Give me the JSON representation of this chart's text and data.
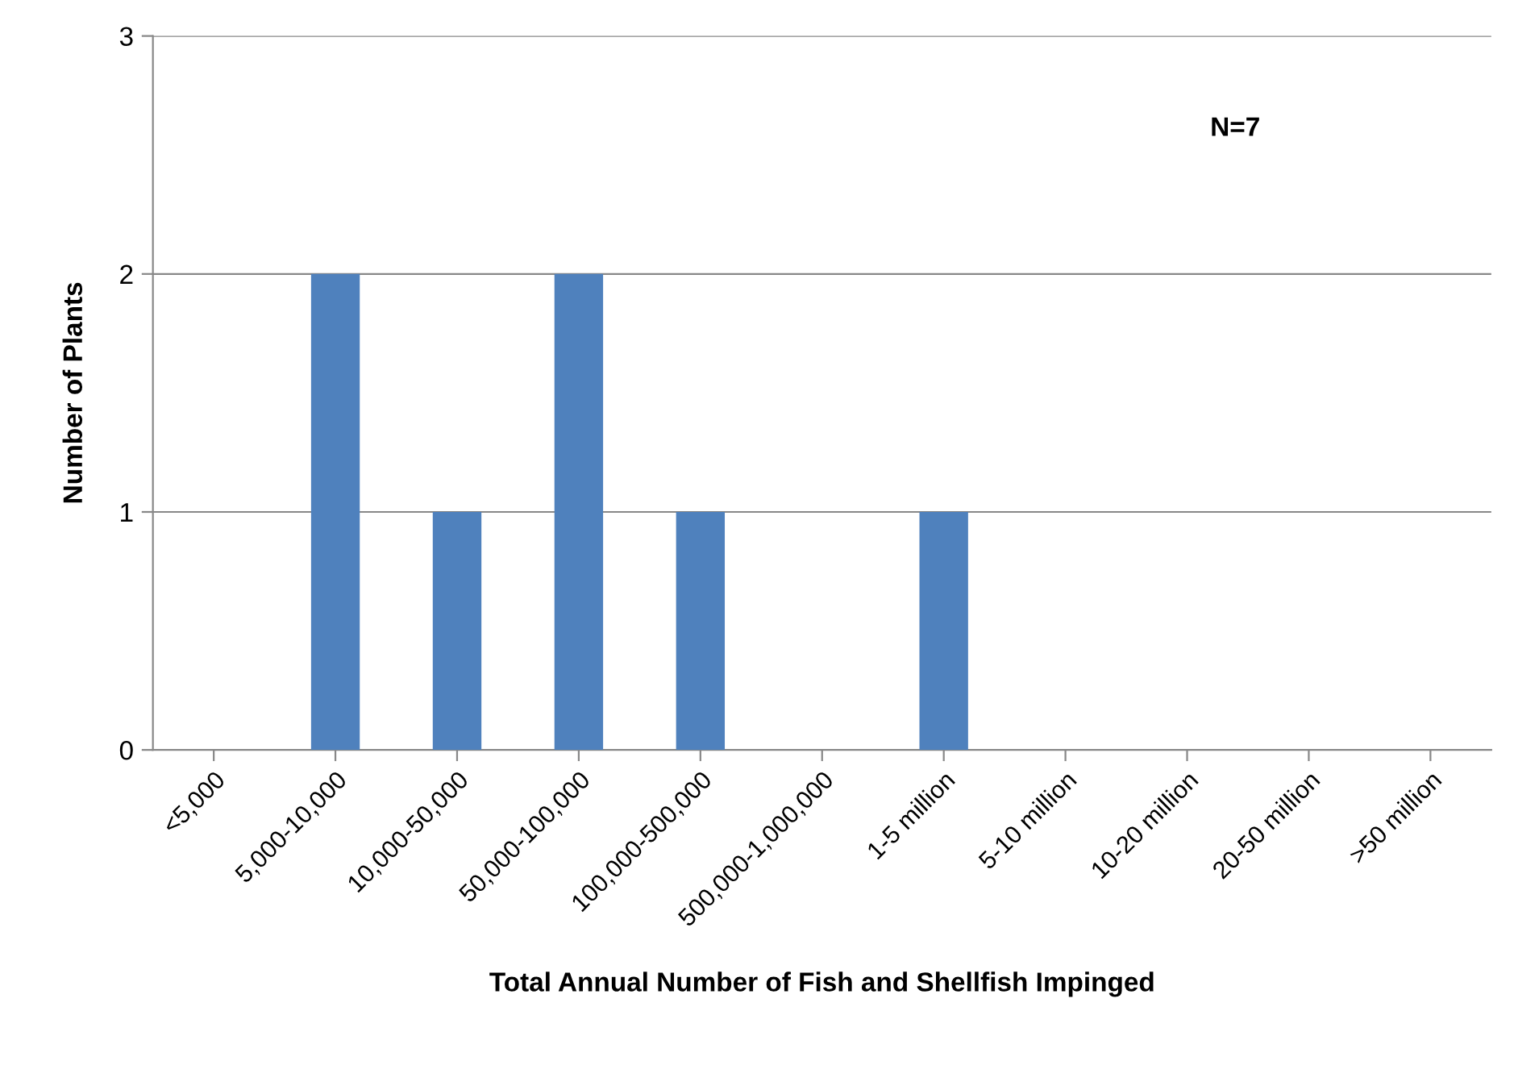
{
  "chart_data": {
    "type": "bar",
    "categories": [
      "<5,000",
      "5,000-10,000",
      "10,000-50,000",
      "50,000-100,000",
      "100,000-500,000",
      "500,000-1,000,000",
      "1-5 million",
      "5-10 million",
      "10-20 million",
      "20-50 million",
      ">50 million"
    ],
    "values": [
      0,
      2,
      1,
      2,
      1,
      0,
      1,
      0,
      0,
      0,
      0
    ],
    "color": "#4f81bd",
    "xlabel": "Total Annual Number of Fish and Shellfish Impinged",
    "ylabel": "Number of Plants",
    "ylim": [
      0,
      3
    ],
    "yticks": [
      0,
      1,
      2,
      3
    ],
    "grid": "y",
    "annotations": [
      "N=7"
    ]
  }
}
